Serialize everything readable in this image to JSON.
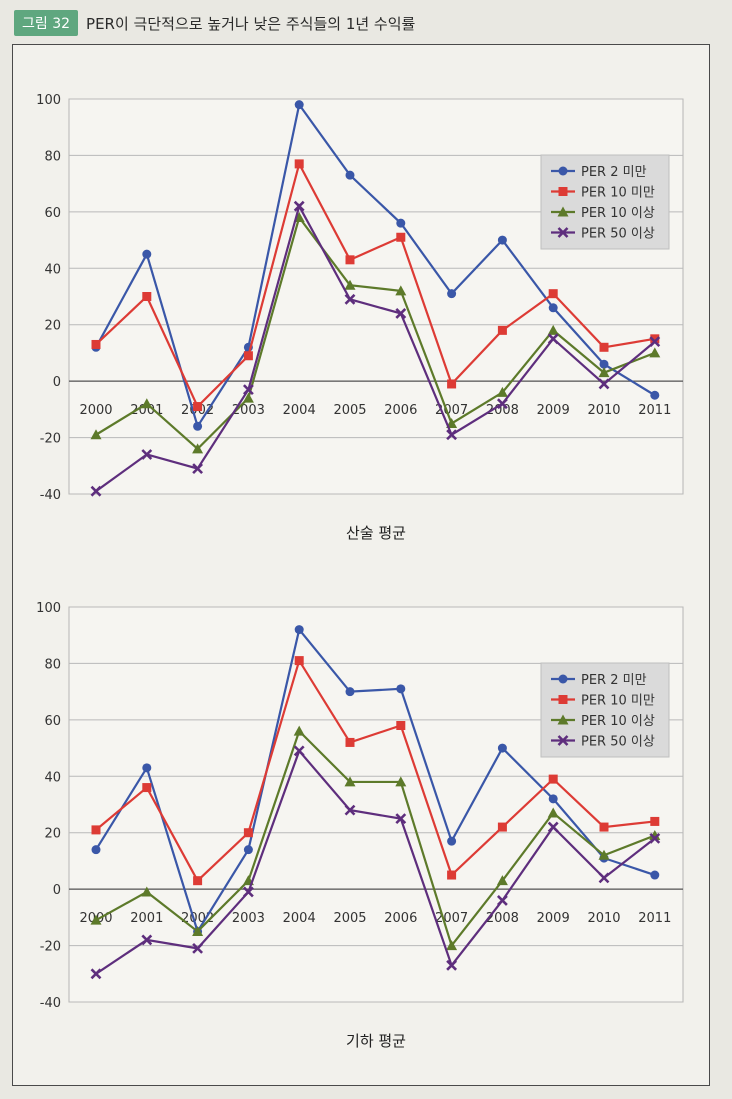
{
  "figure": {
    "label": "그림 32",
    "title": "PER이 극단적으로 높거나 낮은 주식들의 1년 수익률"
  },
  "chart_data": [
    {
      "type": "line",
      "title": "산술 평균",
      "xlabel": "",
      "ylabel": "",
      "categories": [
        "2000",
        "2001",
        "2002",
        "2003",
        "2004",
        "2005",
        "2006",
        "2007",
        "2008",
        "2009",
        "2010",
        "2011"
      ],
      "ylim": [
        -40,
        100
      ],
      "yticks": [
        "100",
        "80",
        "60",
        "40",
        "20",
        "0",
        "-20",
        "-40"
      ],
      "grid": true,
      "legend_position": "top-right",
      "series": [
        {
          "name": "PER  2 미만",
          "color": "#3a57a8",
          "marker": "circle",
          "values": [
            12,
            45,
            -16,
            12,
            98,
            73,
            56,
            31,
            50,
            26,
            6,
            -5
          ]
        },
        {
          "name": "PER 10 미만",
          "color": "#dd3b35",
          "marker": "square",
          "values": [
            13,
            30,
            -9,
            9,
            77,
            43,
            51,
            -1,
            18,
            31,
            12,
            15
          ]
        },
        {
          "name": "PER 10 이상",
          "color": "#5d7a2a",
          "marker": "triangle",
          "values": [
            -19,
            -8,
            -24,
            -6,
            58,
            34,
            32,
            -15,
            -4,
            18,
            3,
            10
          ]
        },
        {
          "name": "PER 50 이상",
          "color": "#5e2e7d",
          "marker": "x",
          "values": [
            -39,
            -26,
            -31,
            -3,
            62,
            29,
            24,
            -19,
            -8,
            15,
            -1,
            14
          ]
        }
      ]
    },
    {
      "type": "line",
      "title": "기하 평균",
      "xlabel": "",
      "ylabel": "",
      "categories": [
        "2000",
        "2001",
        "2002",
        "2003",
        "2004",
        "2005",
        "2006",
        "2007",
        "2008",
        "2009",
        "2010",
        "2011"
      ],
      "ylim": [
        -40,
        100
      ],
      "yticks": [
        "100",
        "80",
        "60",
        "40",
        "20",
        "0",
        "-20",
        "-40"
      ],
      "grid": true,
      "legend_position": "top-right",
      "series": [
        {
          "name": "PER  2 미만",
          "color": "#3a57a8",
          "marker": "circle",
          "values": [
            14,
            43,
            -15,
            14,
            92,
            70,
            71,
            17,
            50,
            32,
            11,
            5
          ]
        },
        {
          "name": "PER 10 미만",
          "color": "#dd3b35",
          "marker": "square",
          "values": [
            21,
            36,
            3,
            20,
            81,
            52,
            58,
            5,
            22,
            39,
            22,
            24
          ]
        },
        {
          "name": "PER 10 이상",
          "color": "#5d7a2a",
          "marker": "triangle",
          "values": [
            -11,
            -1,
            -15,
            3,
            56,
            38,
            38,
            -20,
            3,
            27,
            12,
            19
          ]
        },
        {
          "name": "PER 50 이상",
          "color": "#5e2e7d",
          "marker": "x",
          "values": [
            -30,
            -18,
            -21,
            -1,
            49,
            28,
            25,
            -27,
            -4,
            22,
            4,
            18
          ]
        }
      ]
    }
  ]
}
